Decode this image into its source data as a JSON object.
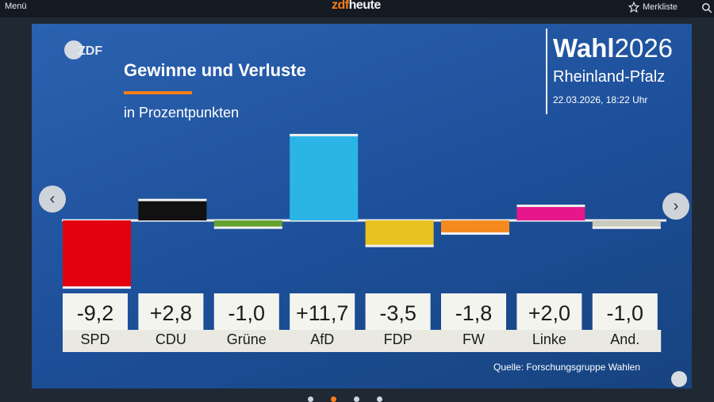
{
  "topbar": {
    "menu_label": "Menü",
    "logo_zdf": "zdf",
    "logo_heute": "heute",
    "merkliste_label": "Merkliste"
  },
  "graphic": {
    "title": "Gewinne und Verluste",
    "subtitle": "in Prozentpunkten",
    "election_word": "Wahl",
    "election_year": "2026",
    "region": "Rheinland-Pfalz",
    "timestamp": "22.03.2026, 18:22 Uhr",
    "source": "Quelle: Forschungsgruppe Wahlen",
    "zdf_badge": "ZDF"
  },
  "chart_data": {
    "type": "bar",
    "title": "Gewinne und Verluste",
    "subtitle": "in Prozentpunkten",
    "categories": [
      "SPD",
      "CDU",
      "Grüne",
      "AfD",
      "FDP",
      "FW",
      "Linke",
      "And."
    ],
    "values": [
      -9.2,
      2.8,
      -1.0,
      11.7,
      -3.5,
      -1.8,
      2.0,
      -1.0
    ],
    "value_labels": [
      "-9,2",
      "+2,8",
      "-1,0",
      "+11,7",
      "-3,5",
      "-1,8",
      "+2,0",
      "-1,0"
    ],
    "colors": [
      "#e3000f",
      "#111111",
      "#64a12d",
      "#2bb5e6",
      "#e8c21e",
      "#f58a1f",
      "#e5178a",
      "#c9c9bc"
    ],
    "ylim": [
      -10,
      12
    ],
    "grid": false,
    "legend": "none"
  },
  "navigation": {
    "prev_symbol": "‹",
    "next_symbol": "›"
  }
}
